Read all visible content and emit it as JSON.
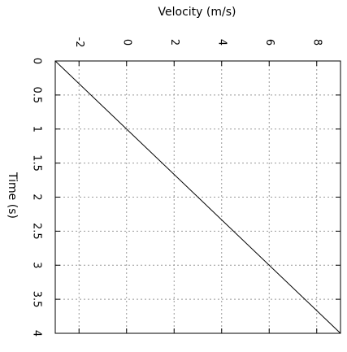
{
  "chart_data": {
    "type": "line",
    "title": "",
    "xlabel": "Velocity (m/s)",
    "ylabel": "Time (s)",
    "xlim": [
      -3,
      9
    ],
    "ylim": [
      0,
      4
    ],
    "y_inverted": true,
    "x_ticks": [
      -2,
      0,
      2,
      4,
      6,
      8
    ],
    "x_tick_labels": [
      "-2",
      "0",
      "2",
      "4",
      "6",
      "8"
    ],
    "y_ticks": [
      0,
      0.5,
      1,
      1.5,
      2,
      2.5,
      3,
      3.5,
      4
    ],
    "y_tick_labels": [
      "0",
      "0.5",
      "1",
      "1.5",
      "2",
      "2.5",
      "3",
      "3.5",
      "4"
    ],
    "grid": true,
    "grid_style": "dotted",
    "x_axis_position": "top",
    "tick_label_rotation": 90,
    "line_color": "#000000",
    "series": [
      {
        "x": [
          -3,
          9
        ],
        "y": [
          0,
          4
        ]
      }
    ]
  }
}
